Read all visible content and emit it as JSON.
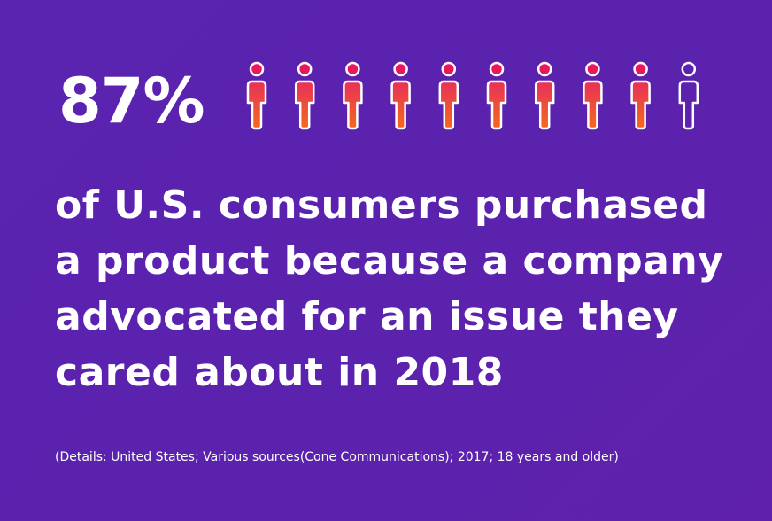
{
  "chart_data": {
    "type": "pictograph",
    "headline": "87%",
    "percent": 87,
    "icon_count": 10,
    "filled_icons": 9,
    "statement_lines": [
      "of U.S. consumers purchased",
      "a product because a company",
      "advocated for an issue they",
      "cared about in 2018"
    ],
    "source": "(Details: United States; Various sources(Cone Communications); 2017; 18 years and older)"
  },
  "colors": {
    "background": "#5b22ae",
    "filled_head": "#e8185f",
    "filled_body_top": "#e8305a",
    "filled_body_bottom": "#f36a1c",
    "outline": "#ffffff"
  },
  "icon": "person-icon"
}
